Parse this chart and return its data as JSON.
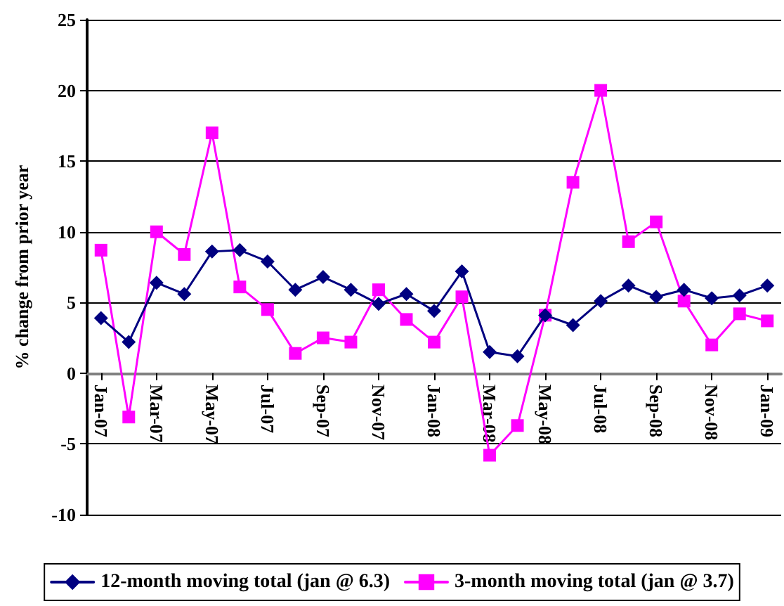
{
  "chart_data": {
    "type": "line",
    "ylabel": "% change from prior year",
    "categories": [
      "Jan-07",
      null,
      "Mar-07",
      null,
      "May-07",
      null,
      "Jul-07",
      null,
      "Sep-07",
      null,
      "Nov-07",
      null,
      "Jan-08",
      null,
      "Mar-08",
      null,
      "May-08",
      null,
      "Jul-08",
      null,
      "Sep-08",
      null,
      "Nov-08",
      null,
      "Jan-09"
    ],
    "series": [
      {
        "name": "12-month moving total (jan @ 6.3)",
        "color": "#000080",
        "marker": "diamond",
        "values": [
          3.9,
          2.2,
          6.4,
          5.6,
          8.6,
          8.7,
          7.9,
          5.9,
          6.8,
          5.9,
          4.9,
          5.6,
          4.4,
          7.2,
          1.5,
          1.2,
          4.1,
          3.4,
          5.1,
          6.2,
          5.4,
          5.9,
          5.3,
          5.5,
          6.2
        ]
      },
      {
        "name": "3-month moving total (jan @ 3.7)",
        "color": "#ff00ff",
        "marker": "square",
        "values": [
          8.7,
          -3.1,
          10.0,
          8.4,
          17.0,
          6.1,
          4.5,
          1.4,
          2.5,
          2.2,
          5.9,
          3.8,
          2.2,
          5.4,
          -5.8,
          -3.7,
          4.1,
          13.5,
          20.0,
          9.3,
          10.7,
          5.1,
          2.0,
          4.2,
          3.7
        ]
      }
    ],
    "ylim": [
      -10,
      25
    ],
    "yticks": [
      -10,
      -5,
      0,
      5,
      10,
      15,
      20,
      25
    ],
    "grid": "y",
    "legend": "bottom",
    "line_style": "solid"
  }
}
